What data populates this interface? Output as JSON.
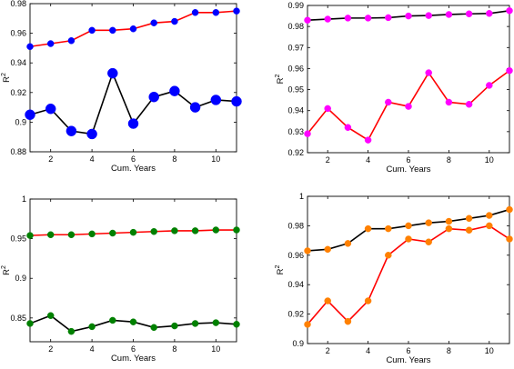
{
  "chart_data": [
    {
      "type": "line",
      "xlabel": "Cum. Years",
      "ylabel": "R",
      "ylabel_sup": "2",
      "xlim": [
        1,
        11
      ],
      "ylim": [
        0.88,
        0.98
      ],
      "xticks": [
        2,
        4,
        6,
        8,
        10
      ],
      "yticks": [
        0.88,
        0.9,
        0.92,
        0.94,
        0.96,
        0.98
      ],
      "ytick_labels": [
        "0.88",
        "0.9",
        "0.92",
        "0.94",
        "0.96",
        "0.98"
      ],
      "grid": false,
      "x": [
        1,
        2,
        3,
        4,
        5,
        6,
        7,
        8,
        9,
        10,
        11
      ],
      "series": [
        {
          "line_color": "#ff0000",
          "marker_color": "#0000ff",
          "marker_size": 3.5,
          "values": [
            0.951,
            0.953,
            0.955,
            0.962,
            0.962,
            0.963,
            0.967,
            0.968,
            0.974,
            0.974,
            0.975
          ]
        },
        {
          "line_color": "#000000",
          "marker_color": "#0000ff",
          "marker_size": 5.5,
          "values": [
            0.905,
            0.909,
            0.894,
            0.892,
            0.933,
            0.899,
            0.917,
            0.921,
            0.91,
            0.915,
            0.914
          ]
        }
      ]
    },
    {
      "type": "line",
      "xlabel": "Cum. Years",
      "ylabel": "R",
      "ylabel_sup": "2",
      "xlim": [
        1,
        11
      ],
      "ylim": [
        0.92,
        0.99
      ],
      "xticks": [
        2,
        4,
        6,
        8,
        10
      ],
      "yticks": [
        0.92,
        0.93,
        0.94,
        0.95,
        0.96,
        0.97,
        0.98,
        0.99
      ],
      "ytick_labels": [
        "0.92",
        "0.93",
        "0.94",
        "0.95",
        "0.96",
        "0.97",
        "0.98",
        "0.99"
      ],
      "grid": false,
      "x": [
        1,
        2,
        3,
        4,
        5,
        6,
        7,
        8,
        9,
        10,
        11
      ],
      "series": [
        {
          "line_color": "#000000",
          "marker_color": "#ff00ff",
          "marker_size": 3.5,
          "values": [
            0.983,
            0.9835,
            0.984,
            0.984,
            0.9842,
            0.985,
            0.9852,
            0.9857,
            0.986,
            0.9862,
            0.9875
          ]
        },
        {
          "line_color": "#ff0000",
          "marker_color": "#ff00ff",
          "marker_size": 3.5,
          "values": [
            0.929,
            0.941,
            0.932,
            0.926,
            0.944,
            0.942,
            0.958,
            0.944,
            0.943,
            0.952,
            0.959
          ]
        }
      ]
    },
    {
      "type": "line",
      "xlabel": "Cum. Years",
      "ylabel": "R",
      "ylabel_sup": "2",
      "xlim": [
        1,
        11
      ],
      "ylim": [
        0.82,
        1.0
      ],
      "xticks": [
        2,
        4,
        6,
        8,
        10
      ],
      "yticks": [
        0.85,
        0.9,
        0.95,
        1.0
      ],
      "ytick_labels": [
        "0.85",
        "0.9",
        "0.95",
        "1"
      ],
      "grid": false,
      "x": [
        1,
        2,
        3,
        4,
        5,
        6,
        7,
        8,
        9,
        10,
        11
      ],
      "series": [
        {
          "line_color": "#ff0000",
          "marker_color": "#008000",
          "marker_size": 3.5,
          "values": [
            0.954,
            0.955,
            0.955,
            0.956,
            0.957,
            0.958,
            0.959,
            0.96,
            0.96,
            0.961,
            0.961
          ]
        },
        {
          "line_color": "#000000",
          "marker_color": "#008000",
          "marker_size": 3.5,
          "values": [
            0.843,
            0.853,
            0.833,
            0.839,
            0.847,
            0.845,
            0.838,
            0.84,
            0.843,
            0.844,
            0.842
          ]
        }
      ]
    },
    {
      "type": "line",
      "xlabel": "Cum. Years",
      "ylabel": "R",
      "ylabel_sup": "2",
      "xlim": [
        1,
        11
      ],
      "ylim": [
        0.9,
        1.0
      ],
      "xticks": [
        2,
        4,
        6,
        8,
        10
      ],
      "yticks": [
        0.9,
        0.92,
        0.94,
        0.96,
        0.98,
        1.0
      ],
      "ytick_labels": [
        "0.9",
        "0.92",
        "0.94",
        "0.96",
        "0.98",
        "1"
      ],
      "grid": false,
      "x": [
        1,
        2,
        3,
        4,
        5,
        6,
        7,
        8,
        9,
        10,
        11
      ],
      "series": [
        {
          "line_color": "#000000",
          "marker_color": "#ff8000",
          "marker_size": 3.5,
          "values": [
            0.963,
            0.964,
            0.968,
            0.978,
            0.978,
            0.98,
            0.982,
            0.983,
            0.985,
            0.987,
            0.991
          ]
        },
        {
          "line_color": "#ff0000",
          "marker_color": "#ff8000",
          "marker_size": 3.5,
          "values": [
            0.913,
            0.929,
            0.915,
            0.929,
            0.96,
            0.971,
            0.969,
            0.978,
            0.977,
            0.98,
            0.971
          ]
        }
      ]
    }
  ]
}
